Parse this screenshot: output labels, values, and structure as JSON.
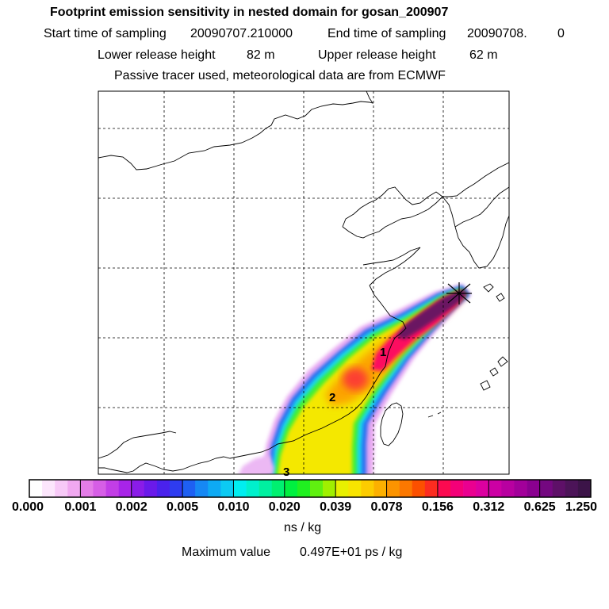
{
  "header": {
    "title": "Footprint emission sensitivity in nested domain for gosan_200907",
    "start_label": "Start time of sampling",
    "start_value": "20090707.210000",
    "end_label": "End time of sampling",
    "end_value": "20090708.",
    "end_suffix": "0",
    "lower_label": "Lower release height",
    "lower_value": "82 m",
    "upper_label": "Upper release height",
    "upper_value": "62 m",
    "tracer_note": "Passive tracer used, meteorological data are from ECMWF"
  },
  "map": {
    "plume_labels": [
      "1",
      "2",
      "3"
    ],
    "release_marker": "release-site"
  },
  "color_scale": {
    "ticks": [
      "0.000",
      "0.001",
      "0.002",
      "0.005",
      "0.010",
      "0.020",
      "0.039",
      "0.078",
      "0.156",
      "0.312",
      "0.625",
      "1.250"
    ],
    "colors": [
      "#ffffff",
      "#fce6fc",
      "#f7c9f7",
      "#f0a8f0",
      "#e47de8",
      "#d65ee6",
      "#c23ee6",
      "#a824e8",
      "#8a1ce8",
      "#6a1aea",
      "#4a22ec",
      "#2e3cf0",
      "#1e60f2",
      "#1688f4",
      "#0eaaf4",
      "#0ccaf2",
      "#00eef0",
      "#00f0cc",
      "#00f0a0",
      "#00f070",
      "#00f040",
      "#20f020",
      "#60f010",
      "#a0f000",
      "#e8f000",
      "#f8e400",
      "#fccc00",
      "#fcb000",
      "#fc9400",
      "#fc7800",
      "#fc5000",
      "#fc2c20",
      "#fc0a50",
      "#f40078",
      "#ea0090",
      "#dc00a0",
      "#cc00a4",
      "#b800a0",
      "#a2009a",
      "#8a0090",
      "#740880",
      "#5e1068",
      "#4c1458",
      "#3c1448"
    ],
    "units": "ns / kg",
    "max_label": "Maximum value",
    "max_value": "0.497E+01 ps / kg"
  }
}
